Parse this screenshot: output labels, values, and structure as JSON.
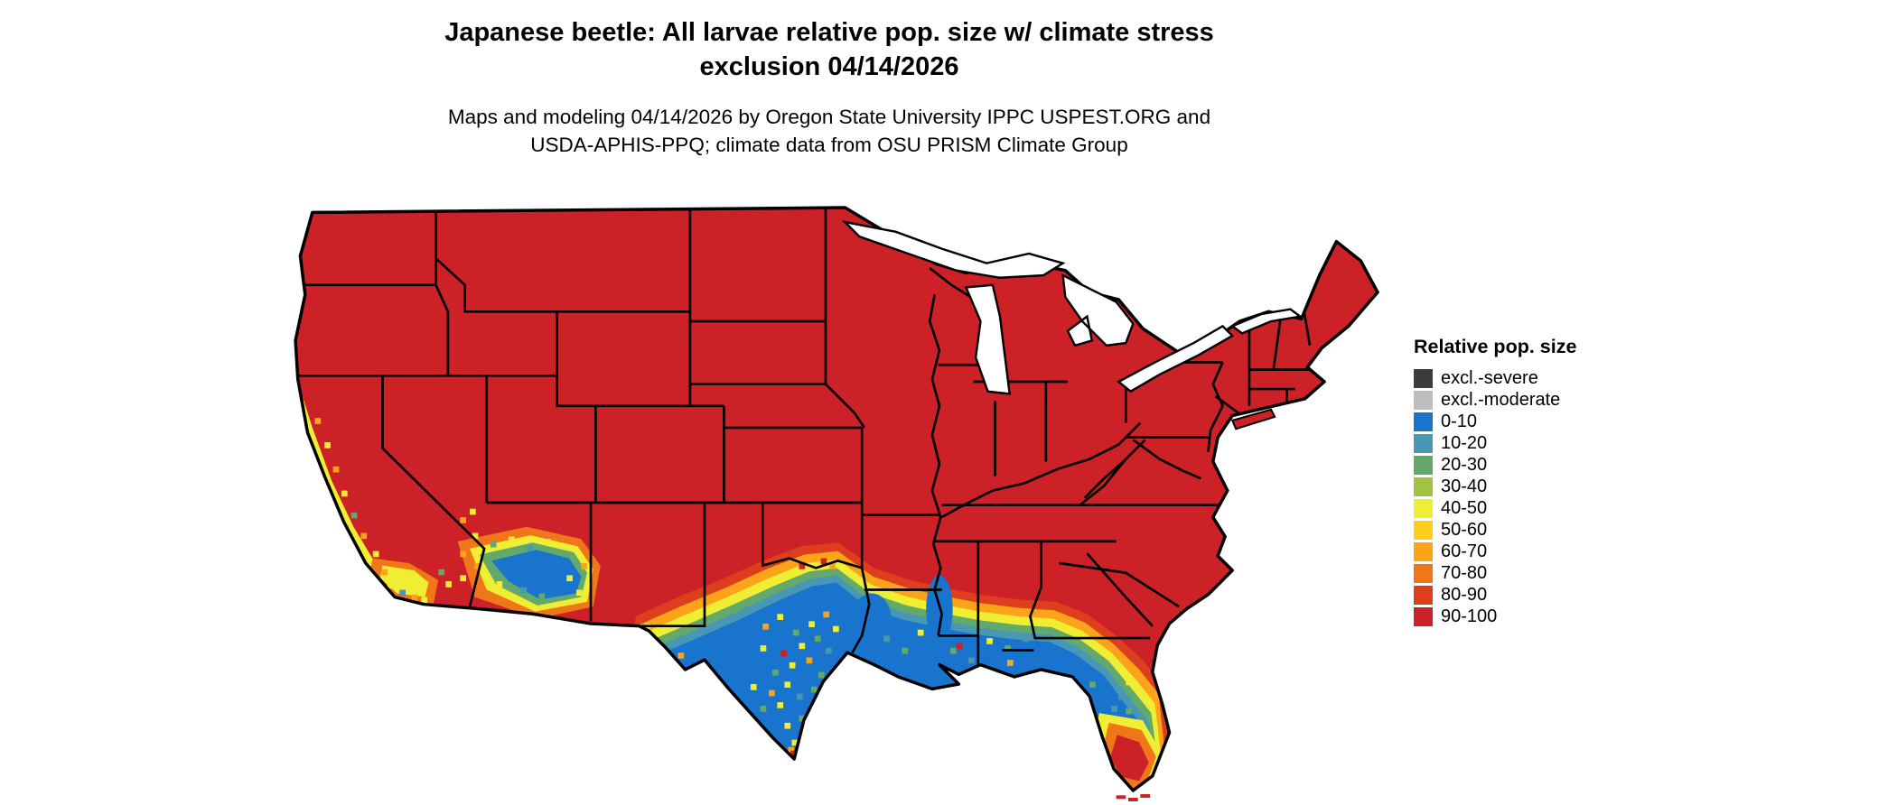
{
  "title": {
    "line1": "Japanese beetle: All larvae relative pop. size w/ climate stress",
    "line2": "exclusion 04/14/2026"
  },
  "subtitle": {
    "line1": "Maps and modeling 04/14/2026 by Oregon State University IPPC USPEST.ORG and",
    "line2": "USDA-APHIS-PPQ; climate data from OSU PRISM Climate Group"
  },
  "legend": {
    "title": "Relative pop. size",
    "items": [
      {
        "label": "excl.-severe",
        "color": "#3c3c3c"
      },
      {
        "label": "excl.-moderate",
        "color": "#bdbdbd"
      },
      {
        "label": "0-10",
        "color": "#1874cd"
      },
      {
        "label": "10-20",
        "color": "#4898b5"
      },
      {
        "label": "20-30",
        "color": "#63a96c"
      },
      {
        "label": "30-40",
        "color": "#9fc43f"
      },
      {
        "label": "40-50",
        "color": "#f0ee33"
      },
      {
        "label": "50-60",
        "color": "#fccf1c"
      },
      {
        "label": "60-70",
        "color": "#fba319"
      },
      {
        "label": "70-80",
        "color": "#f0761a"
      },
      {
        "label": "80-90",
        "color": "#dd3f1e"
      },
      {
        "label": "90-100",
        "color": "#cb2127"
      }
    ]
  }
}
